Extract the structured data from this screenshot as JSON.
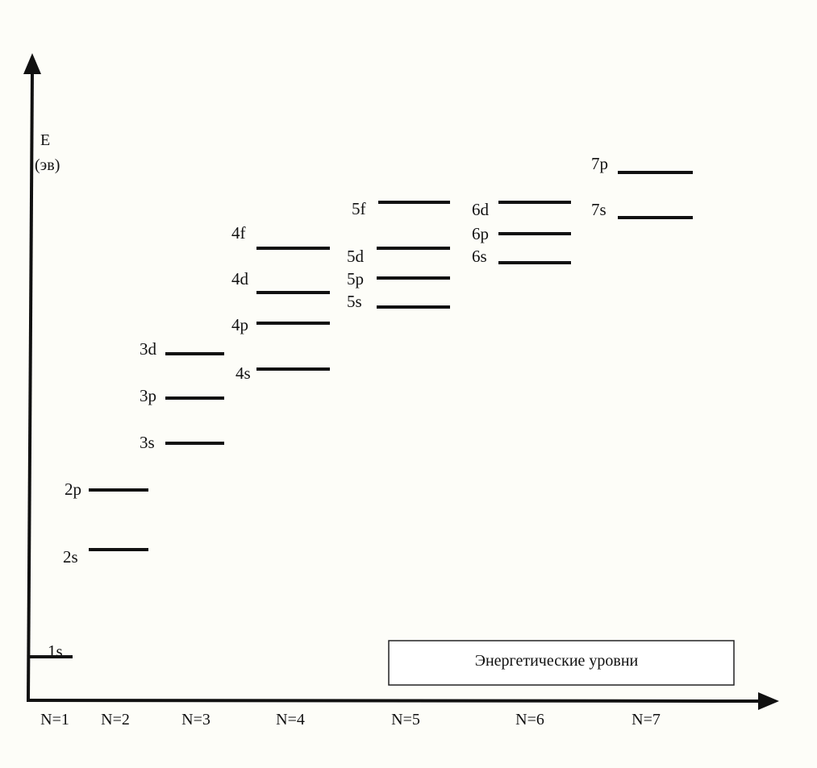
{
  "y_axis": {
    "label_line1": "E",
    "label_line2": "(эв)"
  },
  "x_axis": {
    "labels": [
      "N=1",
      "N=2",
      "N=3",
      "N=4",
      "N=5",
      "N=6",
      "N=7"
    ]
  },
  "legend": {
    "text": "Энергетические уровни"
  },
  "levels": [
    {
      "label": "1s",
      "n": 1
    },
    {
      "label": "2s",
      "n": 2
    },
    {
      "label": "2p",
      "n": 2
    },
    {
      "label": "3s",
      "n": 3
    },
    {
      "label": "3p",
      "n": 3
    },
    {
      "label": "3d",
      "n": 3
    },
    {
      "label": "4s",
      "n": 4
    },
    {
      "label": "4p",
      "n": 4
    },
    {
      "label": "4d",
      "n": 4
    },
    {
      "label": "4f",
      "n": 4
    },
    {
      "label": "5s",
      "n": 5
    },
    {
      "label": "5p",
      "n": 5
    },
    {
      "label": "5d",
      "n": 5
    },
    {
      "label": "5f",
      "n": 5
    },
    {
      "label": "6s",
      "n": 6
    },
    {
      "label": "6p",
      "n": 6
    },
    {
      "label": "6d",
      "n": 6
    },
    {
      "label": "7s",
      "n": 7
    },
    {
      "label": "7p",
      "n": 7
    }
  ]
}
